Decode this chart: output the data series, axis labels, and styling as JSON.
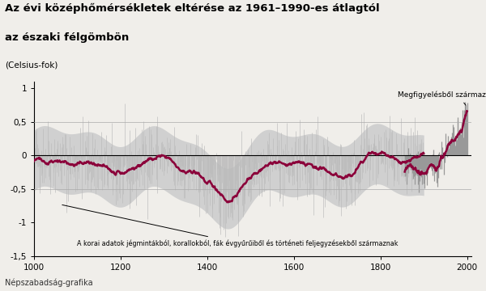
{
  "title_line1": "Az évi középhőmérsékletek eltérése az 1961–1990-es átlagtól",
  "title_line2": "az északi félgömbön",
  "subtitle": "(Celsius-fok)",
  "xlabel_credit": "Népszabadság-grafika",
  "annotation_right": "Megfigyelésből származó adatok",
  "annotation_left": "A korai adatok jégmintákból, korallokból, fák évgyűrűiből és történeti feljegyzésekből származnak",
  "xlim": [
    1000,
    2010
  ],
  "ylim": [
    -1.5,
    1.1
  ],
  "yticks": [
    -1.5,
    -1.0,
    -0.5,
    0.0,
    0.5,
    1.0
  ],
  "xticks": [
    1000,
    1200,
    1400,
    1600,
    1800,
    2000
  ],
  "band_color": "#d0d0d0",
  "line_color": "#8b003a",
  "obs_bar_color": "#999999",
  "proxy_bar_color": "#bbbbbb",
  "zero_line_color": "#000000",
  "hline_color": "#aaaaaa",
  "background_color": "#f0eeea",
  "seed": 42
}
